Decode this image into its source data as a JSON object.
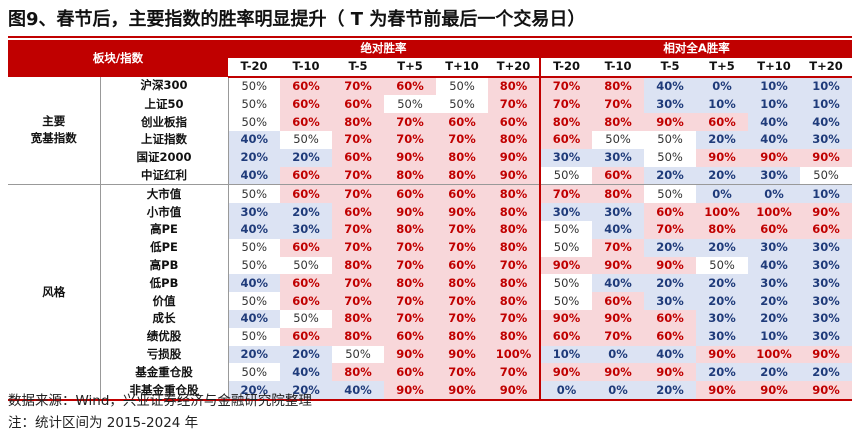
{
  "title": "图9、春节后，主要指数的胜率明显提升（ T 为春节前最后一个交易日）",
  "colors": {
    "accent": "#c00000",
    "high_fill": "#f8d7da",
    "high_text": "#c00000",
    "low_fill": "#dce3f3",
    "low_text": "#1f3b7a"
  },
  "chart_data": {
    "type": "table",
    "corner_label": "板块/指数",
    "groups": [
      {
        "label": "绝对胜率",
        "columns": [
          "T-20",
          "T-10",
          "T-5",
          "T+5",
          "T+10",
          "T+20"
        ]
      },
      {
        "label": "相对全A胜率",
        "columns": [
          "T-20",
          "T-10",
          "T-5",
          "T+5",
          "T+10",
          "T+20"
        ]
      }
    ],
    "categories": [
      {
        "label": "主要宽基指数",
        "label_lines": [
          "主要",
          "宽基指数"
        ],
        "rows": [
          {
            "name": "沪深300",
            "absolute": [
              "50%",
              "60%",
              "70%",
              "60%",
              "50%",
              "80%"
            ],
            "relative": [
              "70%",
              "80%",
              "40%",
              "0%",
              "10%",
              "10%"
            ]
          },
          {
            "name": "上证50",
            "absolute": [
              "50%",
              "60%",
              "60%",
              "50%",
              "50%",
              "70%"
            ],
            "relative": [
              "70%",
              "70%",
              "30%",
              "10%",
              "10%",
              "10%"
            ]
          },
          {
            "name": "创业板指",
            "absolute": [
              "50%",
              "60%",
              "80%",
              "70%",
              "60%",
              "60%"
            ],
            "relative": [
              "80%",
              "80%",
              "90%",
              "60%",
              "40%",
              "40%"
            ]
          },
          {
            "name": "上证指数",
            "absolute": [
              "40%",
              "50%",
              "70%",
              "70%",
              "70%",
              "80%"
            ],
            "relative": [
              "60%",
              "50%",
              "50%",
              "20%",
              "40%",
              "30%"
            ]
          },
          {
            "name": "国证2000",
            "absolute": [
              "20%",
              "20%",
              "60%",
              "90%",
              "80%",
              "90%"
            ],
            "relative": [
              "30%",
              "30%",
              "50%",
              "90%",
              "90%",
              "90%"
            ]
          },
          {
            "name": "中证红利",
            "absolute": [
              "40%",
              "60%",
              "70%",
              "80%",
              "80%",
              "90%"
            ],
            "relative": [
              "50%",
              "60%",
              "20%",
              "20%",
              "30%",
              "50%"
            ]
          }
        ]
      },
      {
        "label": "风格",
        "label_lines": [
          "风格"
        ],
        "rows": [
          {
            "name": "大市值",
            "absolute": [
              "50%",
              "60%",
              "70%",
              "60%",
              "60%",
              "80%"
            ],
            "relative": [
              "70%",
              "80%",
              "50%",
              "0%",
              "0%",
              "10%"
            ]
          },
          {
            "name": "小市值",
            "absolute": [
              "30%",
              "20%",
              "60%",
              "90%",
              "90%",
              "80%"
            ],
            "relative": [
              "30%",
              "30%",
              "60%",
              "100%",
              "100%",
              "90%"
            ]
          },
          {
            "name": "高PE",
            "absolute": [
              "40%",
              "30%",
              "70%",
              "80%",
              "70%",
              "80%"
            ],
            "relative": [
              "50%",
              "40%",
              "70%",
              "80%",
              "60%",
              "60%"
            ]
          },
          {
            "name": "低PE",
            "absolute": [
              "50%",
              "60%",
              "70%",
              "70%",
              "70%",
              "80%"
            ],
            "relative": [
              "50%",
              "70%",
              "20%",
              "20%",
              "30%",
              "30%"
            ]
          },
          {
            "name": "高PB",
            "absolute": [
              "50%",
              "50%",
              "80%",
              "70%",
              "60%",
              "70%"
            ],
            "relative": [
              "90%",
              "90%",
              "90%",
              "50%",
              "40%",
              "30%"
            ]
          },
          {
            "name": "低PB",
            "absolute": [
              "40%",
              "60%",
              "70%",
              "80%",
              "80%",
              "80%"
            ],
            "relative": [
              "50%",
              "40%",
              "20%",
              "20%",
              "30%",
              "30%"
            ]
          },
          {
            "name": "价值",
            "absolute": [
              "50%",
              "60%",
              "70%",
              "70%",
              "70%",
              "80%"
            ],
            "relative": [
              "50%",
              "60%",
              "30%",
              "20%",
              "20%",
              "30%"
            ]
          },
          {
            "name": "成长",
            "absolute": [
              "40%",
              "50%",
              "80%",
              "70%",
              "70%",
              "70%"
            ],
            "relative": [
              "90%",
              "90%",
              "60%",
              "30%",
              "20%",
              "30%"
            ]
          },
          {
            "name": "绩优股",
            "absolute": [
              "50%",
              "60%",
              "80%",
              "60%",
              "80%",
              "80%"
            ],
            "relative": [
              "60%",
              "70%",
              "60%",
              "30%",
              "10%",
              "30%"
            ]
          },
          {
            "name": "亏损股",
            "absolute": [
              "20%",
              "20%",
              "50%",
              "90%",
              "90%",
              "100%"
            ],
            "relative": [
              "10%",
              "0%",
              "40%",
              "90%",
              "100%",
              "90%"
            ]
          },
          {
            "name": "基金重仓股",
            "absolute": [
              "50%",
              "40%",
              "80%",
              "60%",
              "70%",
              "70%"
            ],
            "relative": [
              "90%",
              "90%",
              "90%",
              "20%",
              "20%",
              "20%"
            ]
          },
          {
            "name": "非基金重仓股",
            "absolute": [
              "20%",
              "20%",
              "40%",
              "90%",
              "90%",
              "90%"
            ],
            "relative": [
              "0%",
              "0%",
              "20%",
              "90%",
              "90%",
              "90%"
            ]
          }
        ]
      }
    ]
  },
  "notes": {
    "source": "数据来源：Wind，兴业证券经济与金融研究院整理",
    "remark": "注：统计区间为 2015-2024 年"
  }
}
